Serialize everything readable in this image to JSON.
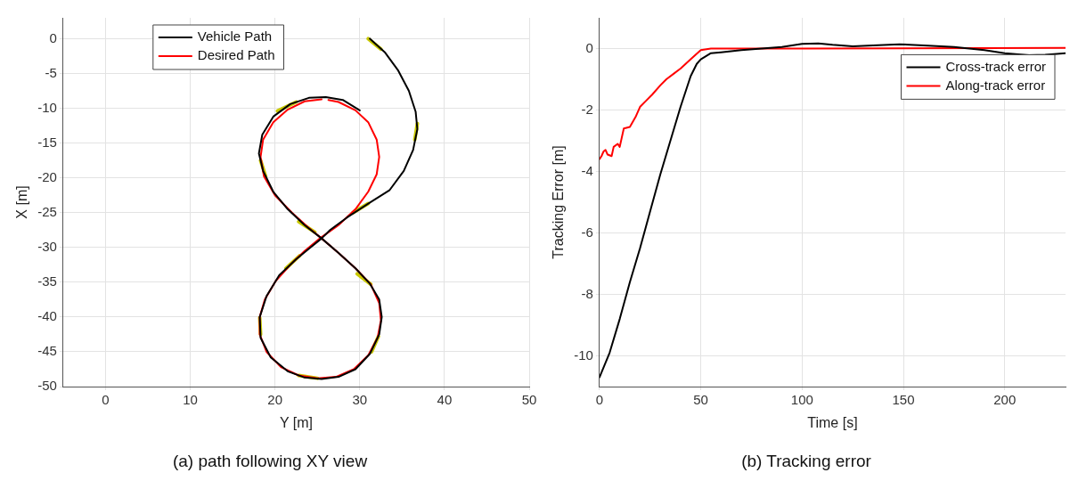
{
  "chart_data": [
    {
      "type": "line",
      "title": "(a) path following XY view",
      "xlabel": "Y [m]",
      "ylabel": "X [m]",
      "xlim": [
        -5,
        50
      ],
      "xticks": [
        0,
        10,
        20,
        30,
        40,
        50
      ],
      "ylim": [
        -50,
        3
      ],
      "yticks": [
        -50,
        -45,
        -40,
        -35,
        -30,
        -25,
        -20,
        -15,
        -10,
        -5,
        0
      ],
      "grid": true,
      "legend": "top left",
      "marker": "none",
      "line_style": "solid",
      "series": [
        {
          "name": "Vehicle Path",
          "color": "#000000",
          "x": [
            31.2,
            33,
            34.5,
            35.8,
            36.6,
            36.8,
            36.3,
            35.2,
            33.5,
            31,
            28.5,
            26.5,
            25.5,
            24,
            22.5,
            20.5,
            19,
            18.2,
            18.3,
            19.5,
            21.5,
            23.5,
            25.5,
            27.5,
            29.5,
            31.2,
            32.3,
            32.6,
            32.3,
            31.2,
            29.5,
            27.5,
            25.5,
            23.5,
            21.5,
            19.8,
            18.6,
            18.1,
            18.5,
            19.8,
            21.8,
            24,
            26,
            28,
            30
          ],
          "values": [
            0,
            -2,
            -4.5,
            -7.5,
            -10.5,
            -13,
            -16,
            -19,
            -21.8,
            -23.7,
            -25.7,
            -27.5,
            -28.7,
            -30.2,
            -31.7,
            -34,
            -37,
            -40,
            -43,
            -45.8,
            -47.8,
            -48.7,
            -48.9,
            -48.6,
            -47.5,
            -45.3,
            -42.5,
            -40,
            -37.5,
            -35.2,
            -33,
            -30.8,
            -28.7,
            -26.8,
            -24.5,
            -22,
            -19,
            -16.5,
            -13.8,
            -11.2,
            -9.4,
            -8.5,
            -8.4,
            -8.8,
            -10.3
          ]
        },
        {
          "name": "Desired Path",
          "color": "#ff0000",
          "x": [
            25.5,
            23.5,
            21.5,
            19.8,
            18.6,
            18.3,
            18.7,
            20,
            22,
            24,
            25.5,
            27.5,
            29.5,
            31.3,
            32.3,
            32.5,
            32.1,
            31,
            29.3,
            27.2,
            25,
            22.8,
            20.7,
            19,
            18.2,
            18.2,
            18.8,
            20.1,
            21.8,
            23.5,
            25.4,
            27.5,
            29.5,
            31,
            32,
            32.3,
            32,
            31,
            29.5,
            27.5,
            26.3
          ],
          "values": [
            -8.7,
            -9,
            -10.2,
            -12,
            -14.5,
            -17,
            -19.8,
            -22.5,
            -25,
            -27.2,
            -28.7,
            -30.8,
            -33,
            -35.3,
            -38,
            -40.5,
            -43,
            -45.5,
            -47.5,
            -48.6,
            -48.8,
            -48.4,
            -47.2,
            -45,
            -42.5,
            -40,
            -37.5,
            -34.8,
            -32.5,
            -30.5,
            -28.6,
            -26.8,
            -24.5,
            -22,
            -19.5,
            -17,
            -14.5,
            -12,
            -10.3,
            -9.1,
            -8.8
          ]
        },
        {
          "color": "#c8c800",
          "x": [
            31,
            32.5,
            null,
            36.8,
            36.5,
            null,
            31,
            29.2,
            null,
            24.7,
            22.8,
            null,
            20.3,
            22.5,
            null,
            18.9,
            18.3,
            null,
            22.9,
            21.3,
            null,
            31.3,
            29.7,
            null,
            18.2,
            18.3,
            null,
            31.4,
            32.2,
            null,
            22.8,
            25
          ],
          "values": [
            0,
            -1.5,
            null,
            -12.2,
            -14.5,
            null,
            -23.7,
            -25,
            null,
            -27.8,
            -26.3,
            null,
            -10.4,
            -9.1,
            null,
            -19.8,
            -17.5,
            null,
            -31.2,
            -33,
            null,
            -35.3,
            -33.8,
            null,
            -40.1,
            -42.5,
            null,
            -45,
            -42.8,
            null,
            -48.4,
            -48.8
          ]
        }
      ]
    },
    {
      "type": "line",
      "title": "(b) Tracking error",
      "xlabel": "Time [s]",
      "ylabel": "Tracking Error [m]",
      "xlim": [
        0,
        230
      ],
      "xticks": [
        0,
        50,
        100,
        150,
        200
      ],
      "ylim": [
        -11,
        1
      ],
      "yticks": [
        -10,
        -8,
        -6,
        -4,
        -2,
        0
      ],
      "grid": true,
      "legend": "top right",
      "marker": "none",
      "line_style": "solid",
      "series": [
        {
          "name": "Cross-track error",
          "color": "#000000",
          "x": [
            0,
            5,
            10,
            15,
            20,
            25,
            30,
            35,
            40,
            45,
            48,
            50,
            55,
            60,
            70,
            80,
            90,
            100,
            108,
            115,
            125,
            135,
            148,
            160,
            175,
            190,
            200,
            212,
            220,
            230
          ],
          "values": [
            -10.7,
            -9.9,
            -8.8,
            -7.6,
            -6.5,
            -5.3,
            -4.1,
            -3,
            -1.9,
            -0.9,
            -0.5,
            -0.35,
            -0.15,
            -0.12,
            -0.05,
            0,
            0.05,
            0.15,
            0.17,
            0.12,
            0.07,
            0.1,
            0.14,
            0.1,
            0.05,
            -0.05,
            -0.15,
            -0.22,
            -0.2,
            -0.15
          ]
        },
        {
          "name": "Along-track error",
          "color": "#ff0000",
          "x": [
            0,
            1,
            2,
            3,
            4,
            6,
            7,
            9,
            10,
            12,
            15,
            18,
            20,
            23,
            26,
            30,
            33,
            37,
            40,
            45,
            50,
            55,
            100,
            230
          ],
          "values": [
            -3.6,
            -3.5,
            -3.35,
            -3.3,
            -3.45,
            -3.5,
            -3.2,
            -3.1,
            -3.2,
            -2.6,
            -2.55,
            -2.2,
            -1.9,
            -1.7,
            -1.5,
            -1.2,
            -1,
            -0.8,
            -0.65,
            -0.35,
            -0.05,
            0,
            0,
            0.02
          ]
        }
      ]
    }
  ]
}
